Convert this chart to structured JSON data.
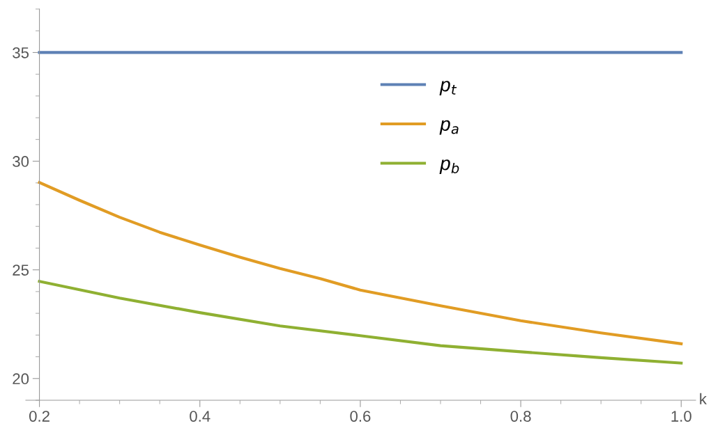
{
  "chart_data": {
    "type": "line",
    "xlabel": "k",
    "x": [
      0.2,
      0.25,
      0.3,
      0.35,
      0.4,
      0.45,
      0.5,
      0.55,
      0.6,
      0.7,
      0.8,
      0.9,
      1.0
    ],
    "series": [
      {
        "name": "p$_{t}$",
        "color": "#5e81b5",
        "values": [
          35,
          35,
          35,
          35,
          35,
          35,
          35,
          35,
          35,
          35,
          35,
          35,
          35
        ]
      },
      {
        "name": "p$_{a}$",
        "color": "#e19c24",
        "values": [
          29.02,
          28.2,
          27.42,
          26.73,
          26.14,
          25.58,
          25.06,
          24.6,
          24.07,
          23.35,
          22.66,
          22.1,
          21.6
        ]
      },
      {
        "name": "p$_{b}$",
        "color": "#8fb032",
        "x": [
          0.2,
          0.3,
          0.4,
          0.5,
          0.6,
          0.7,
          0.8,
          0.9,
          1.0
        ],
        "values": [
          24.47,
          23.7,
          23.03,
          22.42,
          21.97,
          21.51,
          21.23,
          20.96,
          20.71
        ]
      }
    ],
    "xlim": [
      0.183,
      1.018
    ],
    "ylim": [
      19,
      37
    ],
    "xticks": [
      0.2,
      0.4,
      0.6,
      0.8,
      {
        "value": 1,
        "label": "1.0"
      }
    ],
    "yticks": [
      20,
      25,
      30,
      35
    ],
    "grid": false,
    "legend": "top",
    "marker": "none",
    "line_style": "solid"
  }
}
